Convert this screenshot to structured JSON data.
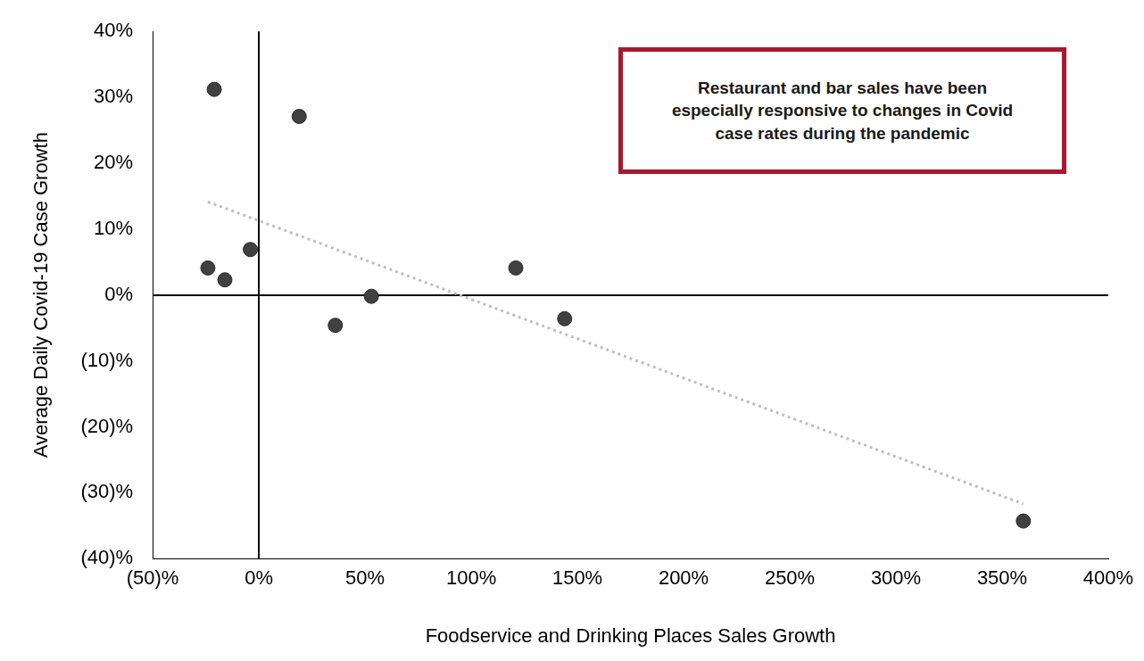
{
  "chart_data": {
    "type": "scatter",
    "annotation": "Restaurant and bar sales have been especially responsive to changes in Covid case rates during the pandemic",
    "x_label": "Foodservice and Drinking Places Sales Growth",
    "y_label": "Average Daily Covid-19 Case Growth",
    "x": [
      -21,
      19,
      -24,
      -4,
      -16,
      53,
      36,
      121,
      144,
      360
    ],
    "values": [
      31.2,
      27.1,
      4.1,
      6.9,
      2.3,
      -0.2,
      -4.6,
      4.1,
      -3.6,
      -34.3
    ],
    "color": "#404040",
    "marker": "circle",
    "line_style": "dotted",
    "xlim": [
      -50,
      400
    ],
    "xticks": [
      {
        "value": -50,
        "label": "(50)%"
      },
      {
        "value": 0,
        "label": "0%"
      },
      {
        "value": 50,
        "label": "50%"
      },
      {
        "value": 100,
        "label": "100%"
      },
      {
        "value": 150,
        "label": "150%"
      },
      {
        "value": 200,
        "label": "200%"
      },
      {
        "value": 250,
        "label": "250%"
      },
      {
        "value": 300,
        "label": "300%"
      },
      {
        "value": 350,
        "label": "350%"
      },
      {
        "value": 400,
        "label": "400%"
      }
    ],
    "ylim": [
      -40,
      40
    ],
    "yticks": [
      {
        "value": -40,
        "label": "(40)%"
      },
      {
        "value": -30,
        "label": "(30)%"
      },
      {
        "value": -20,
        "label": "(20)%"
      },
      {
        "value": -10,
        "label": "(10)%"
      },
      {
        "value": 0,
        "label": "0%"
      },
      {
        "value": 10,
        "label": "10%"
      },
      {
        "value": 20,
        "label": "20%"
      },
      {
        "value": 30,
        "label": "30%"
      },
      {
        "value": 40,
        "label": "40%"
      }
    ],
    "grid": false
  }
}
